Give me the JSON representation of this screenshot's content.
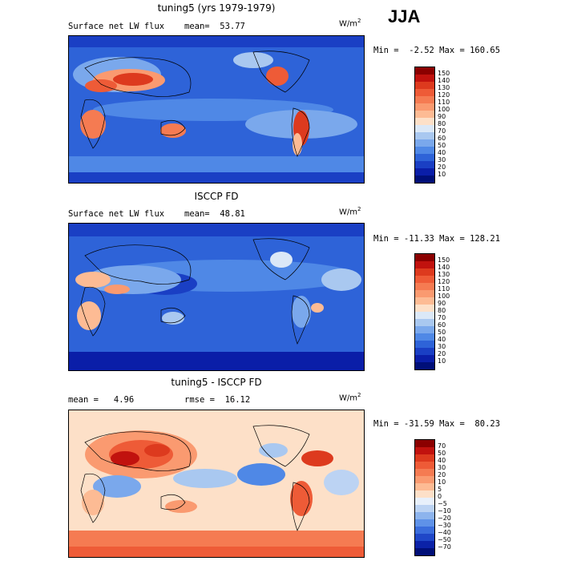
{
  "season": "JJA",
  "units_base": "W/m",
  "units_exp": "2",
  "panels": [
    {
      "title": "tuning5 (yrs 1979-1979)",
      "left_label": "Surface net LW flux",
      "right_label": "mean=  53.77",
      "minmax": "Min =  -2.52 Max = 160.65",
      "colorbar_labels": [
        "150",
        "140",
        "130",
        "120",
        "110",
        "100",
        "90",
        "80",
        "70",
        "60",
        "50",
        "40",
        "30",
        "20",
        "10"
      ],
      "colorbar_colors": [
        "#8b0000",
        "#c1120e",
        "#dd3a1e",
        "#ee5b37",
        "#f57b52",
        "#fa9a70",
        "#fdbb94",
        "#fde0c8",
        "#dbe8f7",
        "#a9c8f0",
        "#7aa8ec",
        "#4f88e6",
        "#2e63d8",
        "#1a3fc4",
        "#0a1ea8",
        "#000f78"
      ]
    },
    {
      "title": "ISCCP FD",
      "left_label": "Surface net LW flux",
      "right_label": "mean=  48.81",
      "minmax": "Min = -11.33 Max = 128.21",
      "colorbar_labels": [
        "150",
        "140",
        "130",
        "120",
        "110",
        "100",
        "90",
        "80",
        "70",
        "60",
        "50",
        "40",
        "30",
        "20",
        "10"
      ],
      "colorbar_colors": [
        "#8b0000",
        "#c1120e",
        "#dd3a1e",
        "#ee5b37",
        "#f57b52",
        "#fa9a70",
        "#fdbb94",
        "#fde0c8",
        "#dbe8f7",
        "#a9c8f0",
        "#7aa8ec",
        "#4f88e6",
        "#2e63d8",
        "#1a3fc4",
        "#0a1ea8",
        "#000f78"
      ]
    },
    {
      "title": "tuning5 - ISCCP FD",
      "left_label": "mean =   4.96",
      "right_label": "rmse =  16.12",
      "minmax": "Min = -31.59 Max =  80.23",
      "colorbar_labels": [
        "70",
        "50",
        "40",
        "30",
        "20",
        "10",
        "5",
        "0",
        "−5",
        "−10",
        "−20",
        "−30",
        "−40",
        "−50",
        "−70"
      ],
      "colorbar_colors": [
        "#8b0000",
        "#c1120e",
        "#dd3a1e",
        "#ee5b37",
        "#f57b52",
        "#fa9a70",
        "#fdbb94",
        "#fde0c8",
        "#e8f0fb",
        "#bcd3f3",
        "#8db4ed",
        "#5f92e8",
        "#3a6ddc",
        "#1f47c8",
        "#0b22a8",
        "#000f78"
      ]
    }
  ]
}
